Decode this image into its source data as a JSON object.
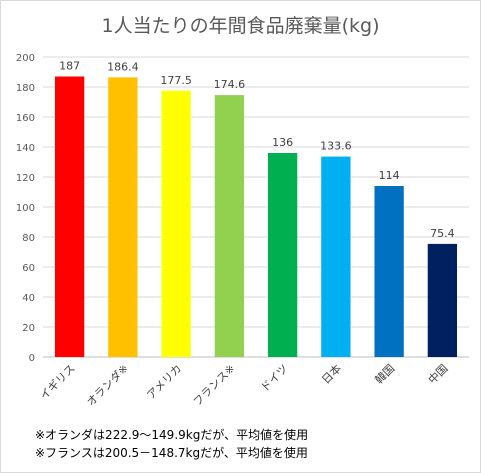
{
  "chart_data": {
    "type": "bar",
    "title": "1人当たりの年間食品廃棄量(kg)",
    "categories": [
      "イギリス",
      "オランダ※",
      "アメリカ",
      "フランス※",
      "ドイツ",
      "日本",
      "韓国",
      "中国"
    ],
    "values": [
      187,
      186.4,
      177.5,
      174.6,
      136,
      133.6,
      114,
      75.4
    ],
    "value_labels": [
      "187",
      "186.4",
      "177.5",
      "174.6",
      "136",
      "133.6",
      "114",
      "75.4"
    ],
    "colors": [
      "#ff0000",
      "#ffc000",
      "#ffff00",
      "#92d050",
      "#00b050",
      "#00b0f0",
      "#0070c0",
      "#002060"
    ],
    "ylim": [
      0,
      200
    ],
    "yticks": [
      0,
      20,
      40,
      60,
      80,
      100,
      120,
      140,
      160,
      180,
      200
    ],
    "grid": true,
    "xlabel": "",
    "ylabel": ""
  },
  "notes": [
    "※オランダは222.9～149.9kgだが、平均値を使用",
    "※フランスは200.5－148.7kgだが、平均値を使用"
  ]
}
